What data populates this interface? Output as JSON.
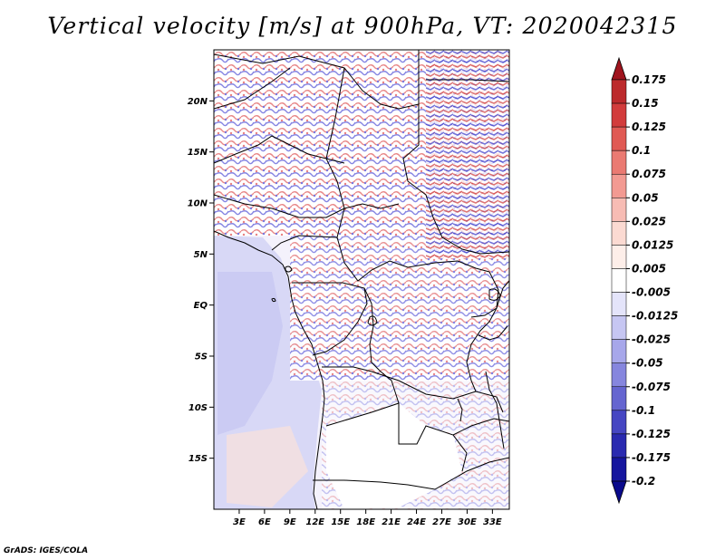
{
  "title": "Vertical velocity [m/s] at 900hPa, VT: 2020042315",
  "credit": "GrADS: IGES/COLA",
  "map": {
    "lat_labels": [
      {
        "label": "20N",
        "lat": 20
      },
      {
        "label": "15N",
        "lat": 15
      },
      {
        "label": "10N",
        "lat": 10
      },
      {
        "label": "5N",
        "lat": 5
      },
      {
        "label": "EQ",
        "lat": 0
      },
      {
        "label": "5S",
        "lat": -5
      },
      {
        "label": "10S",
        "lat": -10
      },
      {
        "label": "15S",
        "lat": -15
      }
    ],
    "lon_labels": [
      {
        "label": "3E",
        "lon": 3
      },
      {
        "label": "6E",
        "lon": 6
      },
      {
        "label": "9E",
        "lon": 9
      },
      {
        "label": "12E",
        "lon": 12
      },
      {
        "label": "15E",
        "lon": 15
      },
      {
        "label": "18E",
        "lon": 18
      },
      {
        "label": "21E",
        "lon": 21
      },
      {
        "label": "24E",
        "lon": 24
      },
      {
        "label": "27E",
        "lon": 27
      },
      {
        "label": "30E",
        "lon": 30
      },
      {
        "label": "33E",
        "lon": 33
      }
    ],
    "extent": {
      "lon_min": 0,
      "lon_max": 35,
      "lat_min": -20,
      "lat_max": 25
    }
  },
  "colorbar": {
    "labels": [
      "0.175",
      "0.15",
      "0.125",
      "0.1",
      "0.075",
      "0.05",
      "0.025",
      "0.0125",
      "0.005",
      "-0.005",
      "-0.0125",
      "-0.025",
      "-0.05",
      "-0.075",
      "-0.1",
      "-0.125",
      "-0.175",
      "-0.2"
    ],
    "colors": [
      "#a0141e",
      "#bc2a2c",
      "#d23c3c",
      "#e05a54",
      "#ea7a72",
      "#f29a92",
      "#f7bcb4",
      "#fbdad2",
      "#fdeee9",
      "#ffffff",
      "#e4e4fa",
      "#c6c6f2",
      "#a7a7ea",
      "#8686de",
      "#6565d0",
      "#4646c2",
      "#2a2ab0",
      "#16169e",
      "#0a0a8c"
    ]
  }
}
